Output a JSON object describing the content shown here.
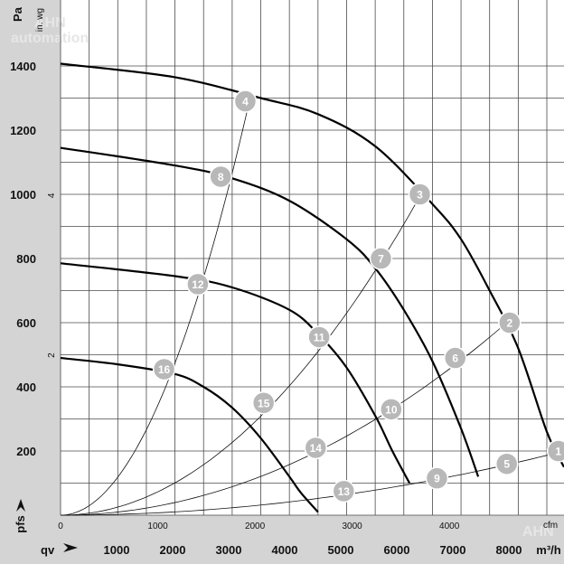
{
  "chart_data": {
    "type": "line",
    "title": "",
    "watermark": [
      "AHN",
      "automation"
    ],
    "watermark_corner": "AHN",
    "colors": {
      "background": "#d4d4d4",
      "plot": "#ffffff",
      "grid": "#4a4a4a",
      "curve": "#000000",
      "marker": "#b8b8b8"
    },
    "y_label": "Pa",
    "y_label_secondary": "in. wg",
    "y_label_bottom": "pfs",
    "x_label_bottom": "qv",
    "x_unit_bottom": "m³/h",
    "x_unit_top": "cfm",
    "y_ticks_pa": [
      "200",
      "400",
      "600",
      "800",
      "1000",
      "1200",
      "1400"
    ],
    "y_ticks_inwg": [
      "2",
      "4"
    ],
    "x_ticks_m3h": [
      "1000",
      "2000",
      "3000",
      "4000",
      "5000",
      "6000",
      "7000",
      "8000"
    ],
    "x_ticks_cfm": [
      "0",
      "1000",
      "2000",
      "3000",
      "4000"
    ],
    "xlim_m3h": [
      0,
      8800
    ],
    "ylim_pa": [
      0,
      1400
    ],
    "grid": true,
    "series": [
      {
        "x": [
          0,
          2000,
          3500,
          4500,
          5500,
          6500,
          7000,
          7500,
          8000,
          8500,
          8800
        ],
        "y": [
          1407,
          1365,
          1300,
          1250,
          1150,
          970,
          860,
          700,
          520,
          260,
          150
        ]
      },
      {
        "x": [
          0,
          2000,
          3000,
          4000,
          5000,
          5500,
          6000,
          6500,
          7000,
          7300
        ],
        "y": [
          1145,
          1090,
          1050,
          980,
          860,
          770,
          640,
          480,
          270,
          120
        ]
      },
      {
        "x": [
          0,
          2000,
          3000,
          4000,
          4500,
          5000,
          5500,
          5800,
          6100
        ],
        "y": [
          785,
          745,
          710,
          640,
          565,
          460,
          310,
          200,
          100
        ]
      },
      {
        "x": [
          0,
          1000,
          2000,
          2500,
          3000,
          3500,
          4000,
          4200,
          4500
        ],
        "y": [
          490,
          470,
          440,
          400,
          335,
          240,
          120,
          70,
          10
        ]
      }
    ],
    "system_lines": [
      {
        "name": "1",
        "points": [
          [
            0,
            0
          ],
          [
            8800,
            200
          ]
        ]
      },
      {
        "name": "2",
        "points": [
          [
            0,
            0
          ],
          [
            7800,
            600
          ]
        ]
      },
      {
        "name": "3",
        "points": [
          [
            0,
            0
          ],
          [
            6300,
            1000
          ]
        ]
      },
      {
        "name": "4",
        "points": [
          [
            0,
            0
          ],
          [
            3300,
            1290
          ]
        ]
      }
    ],
    "operating_points": [
      {
        "label": "1",
        "x": 8700,
        "y": 200
      },
      {
        "label": "2",
        "x": 7850,
        "y": 600
      },
      {
        "label": "3",
        "x": 6280,
        "y": 1000
      },
      {
        "label": "4",
        "x": 3230,
        "y": 1290
      },
      {
        "label": "5",
        "x": 7800,
        "y": 160
      },
      {
        "label": "6",
        "x": 6900,
        "y": 490
      },
      {
        "label": "7",
        "x": 5600,
        "y": 800
      },
      {
        "label": "8",
        "x": 2800,
        "y": 1055
      },
      {
        "label": "9",
        "x": 6580,
        "y": 115
      },
      {
        "label": "10",
        "x": 5780,
        "y": 330
      },
      {
        "label": "11",
        "x": 4520,
        "y": 555
      },
      {
        "label": "12",
        "x": 2400,
        "y": 720
      },
      {
        "label": "13",
        "x": 4950,
        "y": 75
      },
      {
        "label": "14",
        "x": 4460,
        "y": 210
      },
      {
        "label": "15",
        "x": 3550,
        "y": 350
      },
      {
        "label": "16",
        "x": 1810,
        "y": 455
      }
    ]
  }
}
